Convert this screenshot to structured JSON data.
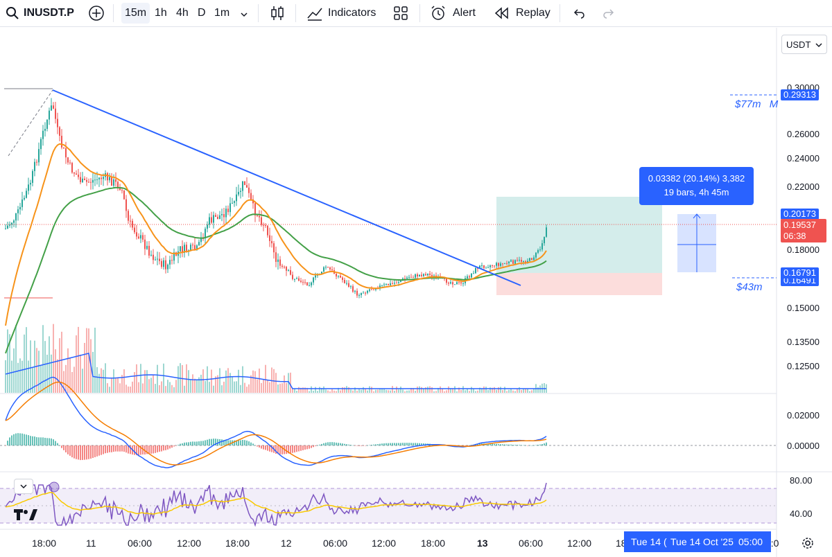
{
  "toolbar": {
    "symbol": "INUSDT.P",
    "intervals": [
      "15m",
      "1h",
      "4h",
      "D",
      "1m"
    ],
    "indicators_label": "Indicators",
    "alert_label": "Alert",
    "replay_label": "Replay"
  },
  "currency_selector": "USDT",
  "price_axis": {
    "ticks": [
      "0.30000",
      "0.26000",
      "0.24000",
      "0.22000",
      "0.18000",
      "0.15000",
      "0.13500",
      "0.12500"
    ],
    "badges": {
      "top": "0.29313",
      "high": "0.20173",
      "last": "0.19537",
      "countdown": "06:38",
      "entry": "0.16791",
      "partial": "0.16491"
    }
  },
  "volume_labels": {
    "upper": "$77m",
    "upper_suffix": "M",
    "lower": "$43m"
  },
  "measure_tooltip": {
    "line1": "0.03382 (20.14%) 3,382",
    "line2": "19 bars, 4h 45m"
  },
  "macd_axis": [
    "0.02000",
    "0.00000"
  ],
  "rsi_axis": [
    "80.00",
    "40.00"
  ],
  "time_axis": [
    "18:00",
    "11",
    "06:00",
    "12:00",
    "18:00",
    "12",
    "06:00",
    "12:00",
    "18:00",
    "13",
    "06:00",
    "12:00",
    "18",
    "2:0"
  ],
  "crosshair_time": {
    "left": "Tue 14 (",
    "main": "Tue 14 Oct '25",
    "time": "05:00"
  },
  "colors": {
    "up": "#26a69a",
    "down": "#ef5350",
    "trendline": "#2962ff",
    "ma_fast": "#f7931a",
    "ma_slow": "#43a047",
    "rsi": "#7e57c2"
  }
}
